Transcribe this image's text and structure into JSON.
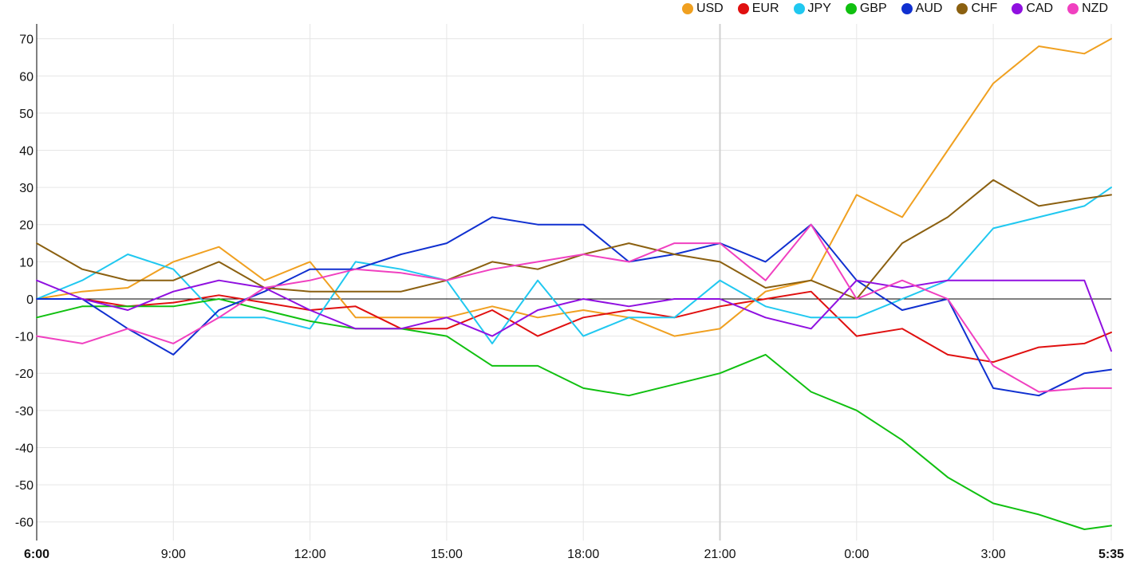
{
  "colors": {
    "USD": "#f0a020",
    "EUR": "#e01010",
    "JPY": "#20c8f0",
    "GBP": "#10c010",
    "AUD": "#1030d0",
    "CHF": "#8b6010",
    "CAD": "#9010e0",
    "NZD": "#f040c0",
    "grid": "#e6e6e6",
    "axis": "#000000"
  },
  "chart_data": {
    "type": "line",
    "x": [
      "6:00",
      "7:00",
      "8:00",
      "9:00",
      "10:00",
      "11:00",
      "12:00",
      "13:00",
      "14:00",
      "15:00",
      "16:00",
      "17:00",
      "18:00",
      "19:00",
      "20:00",
      "21:00",
      "22:00",
      "23:00",
      "0:00",
      "1:00",
      "2:00",
      "3:00",
      "4:00",
      "5:00",
      "5:35"
    ],
    "x_tick_labels": [
      "6:00",
      "9:00",
      "12:00",
      "15:00",
      "18:00",
      "21:00",
      "0:00",
      "3:00",
      "5:35"
    ],
    "y_ticks": [
      -60,
      -50,
      -40,
      -30,
      -20,
      -10,
      0,
      10,
      20,
      30,
      40,
      50,
      60,
      70
    ],
    "ylim": [
      -65,
      74
    ],
    "grid": true,
    "legend_position": "top-right",
    "series": [
      {
        "name": "USD",
        "values": [
          0,
          2,
          3,
          10,
          14,
          5,
          10,
          -5,
          -5,
          -5,
          -2,
          -5,
          -3,
          -5,
          -10,
          -8,
          2,
          5,
          28,
          22,
          40,
          58,
          68,
          66,
          70
        ]
      },
      {
        "name": "EUR",
        "values": [
          0,
          0,
          -2,
          -1,
          1,
          -1,
          -3,
          -2,
          -8,
          -8,
          -3,
          -10,
          -5,
          -3,
          -5,
          -2,
          0,
          2,
          -10,
          -8,
          -15,
          -17,
          -13,
          -12,
          -9
        ]
      },
      {
        "name": "JPY",
        "values": [
          0,
          5,
          12,
          8,
          -5,
          -5,
          -8,
          10,
          8,
          5,
          -12,
          5,
          -10,
          -5,
          -5,
          5,
          -2,
          -5,
          -5,
          0,
          5,
          19,
          22,
          25,
          30
        ]
      },
      {
        "name": "GBP",
        "values": [
          -5,
          -2,
          -2,
          -2,
          0,
          -3,
          -6,
          -8,
          -8,
          -10,
          -18,
          -18,
          -24,
          -26,
          -23,
          -20,
          -15,
          -25,
          -30,
          -38,
          -48,
          -55,
          -58,
          -62,
          -61
        ]
      },
      {
        "name": "AUD",
        "values": [
          0,
          0,
          -8,
          -15,
          -3,
          2,
          8,
          8,
          12,
          15,
          22,
          20,
          20,
          10,
          12,
          15,
          10,
          20,
          5,
          -3,
          0,
          -24,
          -26,
          -20,
          -19
        ]
      },
      {
        "name": "CHF",
        "values": [
          15,
          8,
          5,
          5,
          10,
          3,
          2,
          2,
          2,
          5,
          10,
          8,
          12,
          15,
          12,
          10,
          3,
          5,
          0,
          15,
          22,
          32,
          25,
          27,
          28
        ]
      },
      {
        "name": "CAD",
        "values": [
          5,
          0,
          -3,
          2,
          5,
          3,
          -3,
          -8,
          -8,
          -5,
          -10,
          -3,
          0,
          -2,
          0,
          0,
          -5,
          -8,
          5,
          3,
          5,
          5,
          5,
          5,
          -14
        ]
      },
      {
        "name": "NZD",
        "values": [
          -10,
          -12,
          -8,
          -12,
          -5,
          3,
          5,
          8,
          7,
          5,
          8,
          10,
          12,
          10,
          15,
          15,
          5,
          20,
          0,
          5,
          0,
          -18,
          -25,
          -24,
          -24
        ]
      }
    ]
  }
}
